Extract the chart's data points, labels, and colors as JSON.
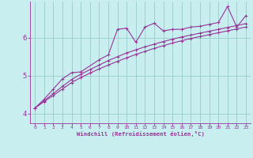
{
  "xlabel": "Windchill (Refroidissement éolien,°C)",
  "bg_color": "#c8eef0",
  "line_color": "#993399",
  "grid_color": "#99cccc",
  "xlim": [
    -0.5,
    23.5
  ],
  "ylim": [
    3.75,
    6.95
  ],
  "xticks": [
    0,
    1,
    2,
    3,
    4,
    5,
    6,
    7,
    8,
    9,
    10,
    11,
    12,
    13,
    14,
    15,
    16,
    17,
    18,
    19,
    20,
    21,
    22,
    23
  ],
  "yticks": [
    4,
    5,
    6
  ],
  "series1_x": [
    0,
    1,
    2,
    3,
    4,
    5,
    6,
    7,
    8,
    9,
    10,
    11,
    12,
    13,
    14,
    15,
    16,
    17,
    18,
    19,
    20,
    21,
    22,
    23
  ],
  "series1_y": [
    4.15,
    4.32,
    4.48,
    4.65,
    4.82,
    4.95,
    5.07,
    5.18,
    5.28,
    5.38,
    5.47,
    5.56,
    5.64,
    5.72,
    5.79,
    5.86,
    5.92,
    5.98,
    6.03,
    6.08,
    6.13,
    6.18,
    6.23,
    6.28
  ],
  "series2_x": [
    0,
    1,
    2,
    3,
    4,
    5,
    6,
    7,
    8,
    9,
    10,
    11,
    12,
    13,
    14,
    15,
    16,
    17,
    18,
    19,
    20,
    21,
    22,
    23
  ],
  "series2_y": [
    4.15,
    4.34,
    4.53,
    4.72,
    4.9,
    5.04,
    5.16,
    5.28,
    5.4,
    5.5,
    5.6,
    5.68,
    5.76,
    5.83,
    5.9,
    5.96,
    6.02,
    6.07,
    6.12,
    6.17,
    6.22,
    6.27,
    6.32,
    6.37
  ],
  "series3_x": [
    0,
    1,
    2,
    3,
    4,
    5,
    7,
    8,
    9,
    10,
    11,
    12,
    13,
    14,
    15,
    16,
    17,
    18,
    19,
    20,
    21,
    22,
    23
  ],
  "series3_y": [
    4.15,
    4.38,
    4.65,
    4.92,
    5.08,
    5.1,
    5.42,
    5.55,
    6.22,
    6.25,
    5.88,
    6.28,
    6.38,
    6.18,
    6.22,
    6.22,
    6.28,
    6.3,
    6.35,
    6.4,
    6.82,
    6.28,
    6.58
  ],
  "marker_size": 3.5,
  "line_width": 0.8
}
